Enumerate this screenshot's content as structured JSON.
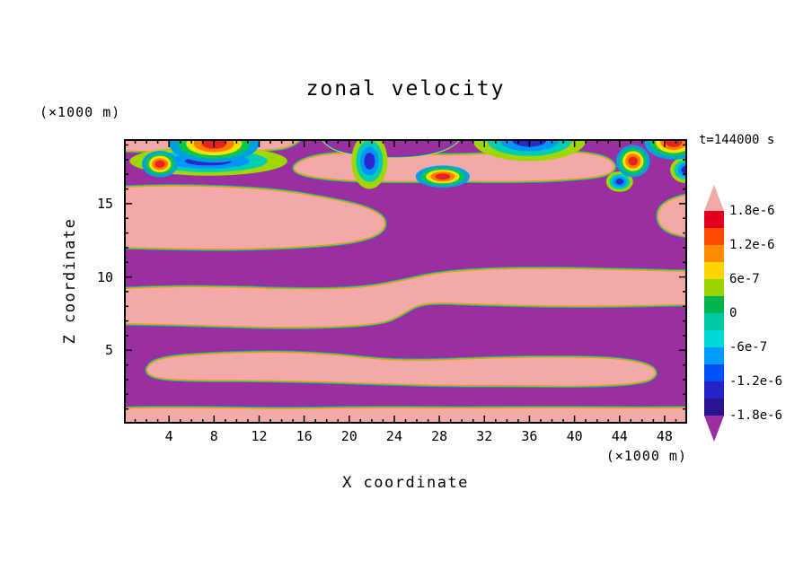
{
  "chart_data": {
    "type": "heatmap",
    "title": "zonal velocity",
    "annotation": "t=144000 s",
    "xlabel": "X coordinate",
    "ylabel": "Z coordinate",
    "x_unit": "(×1000 m)",
    "y_unit": "(×1000 m)",
    "xlim": [
      0,
      50
    ],
    "ylim": [
      0,
      19.4
    ],
    "x_ticks": [
      4,
      8,
      12,
      16,
      20,
      24,
      28,
      32,
      36,
      40,
      44,
      48
    ],
    "y_ticks": [
      5,
      10,
      15
    ],
    "colorbar": {
      "labels": [
        "1.8e-6",
        "1.2e-6",
        "6e-7",
        "0",
        "-6e-7",
        "-1.2e-6",
        "-1.8e-6"
      ],
      "level_values": [
        1.8e-06,
        1.2e-06,
        6e-07,
        0,
        -6e-07,
        -1.2e-06,
        -1.8e-06
      ],
      "segment_colors": [
        "#e3001e",
        "#ff4b00",
        "#ff8c00",
        "#ffd500",
        "#9bd500",
        "#00b450",
        "#00c8a5",
        "#00d7d7",
        "#009bff",
        "#0050f5",
        "#2323c8",
        "#28148f"
      ],
      "top_cap_color": "#f4a9a9",
      "bottom_cap_color": "#9a2f9f"
    },
    "colors": {
      "positive": "#f4a9a9",
      "negative": "#9a2f9f",
      "warm_rings": [
        "#00a0e1",
        "#00c850",
        "#ffe000",
        "#ff7d00",
        "#e8231e"
      ],
      "cool_rings": [
        "#a0d700",
        "#00cdb4",
        "#0096ff",
        "#2a28c8"
      ]
    },
    "field": {
      "description": "Filled contour field of zonal velocity at t=144000 s: broad horizontal pink layers (u >= 1.8e-6) alternate with purple layers (u <= -1.8e-6) through the interior; a strongly mixed multi-colored turbulent layer occupies the top of the domain (z ~ 16.5-19.4 x1000 m). Region outlines below are digitized in data coordinates (x, z in x1000 m).",
      "positive_regions": [
        {
          "name": "bottom-strip",
          "points": [
            [
              -3,
              1.05
            ],
            [
              6,
              1.1
            ],
            [
              14,
              1.0
            ],
            [
              22,
              1.1
            ],
            [
              30,
              1.05
            ],
            [
              38,
              1.1
            ],
            [
              46,
              1.05
            ],
            [
              53,
              1.1
            ],
            [
              53,
              -2
            ],
            [
              -3,
              -2
            ]
          ]
        },
        {
          "name": "lower-band",
          "points": [
            [
              1.8,
              3.7
            ],
            [
              3,
              4.5
            ],
            [
              8,
              4.8
            ],
            [
              14,
              4.9
            ],
            [
              19,
              4.7
            ],
            [
              23,
              4.35
            ],
            [
              27,
              4.3
            ],
            [
              33,
              4.5
            ],
            [
              39,
              4.55
            ],
            [
              44,
              4.45
            ],
            [
              46.8,
              4.0
            ],
            [
              47.4,
              3.3
            ],
            [
              46.0,
              2.75
            ],
            [
              41,
              2.55
            ],
            [
              35,
              2.6
            ],
            [
              29,
              2.6
            ],
            [
              24,
              2.7
            ],
            [
              18,
              2.85
            ],
            [
              12,
              2.95
            ],
            [
              6,
              2.95
            ],
            [
              2.6,
              3.1
            ]
          ]
        },
        {
          "name": "middle-step-band",
          "points": [
            [
              -3,
              9.1
            ],
            [
              4,
              9.35
            ],
            [
              10,
              9.3
            ],
            [
              16,
              9.15
            ],
            [
              21,
              9.25
            ],
            [
              24.5,
              9.7
            ],
            [
              27.5,
              10.25
            ],
            [
              32,
              10.55
            ],
            [
              38,
              10.6
            ],
            [
              44,
              10.5
            ],
            [
              49,
              10.4
            ],
            [
              53,
              10.35
            ],
            [
              53,
              8.15
            ],
            [
              48,
              8.1
            ],
            [
              42,
              8.0
            ],
            [
              36,
              8.05
            ],
            [
              31,
              8.15
            ],
            [
              28,
              8.25
            ],
            [
              26,
              8.1
            ],
            [
              24.6,
              7.4
            ],
            [
              23,
              6.85
            ],
            [
              19,
              6.6
            ],
            [
              13,
              6.55
            ],
            [
              7,
              6.7
            ],
            [
              2,
              6.8
            ],
            [
              -3,
              6.85
            ]
          ]
        },
        {
          "name": "upper-left-blob",
          "points": [
            [
              -3,
              16.0
            ],
            [
              3,
              16.25
            ],
            [
              9,
              16.15
            ],
            [
              14,
              15.9
            ],
            [
              18,
              15.4
            ],
            [
              21.5,
              14.8
            ],
            [
              23.3,
              14.0
            ],
            [
              23.0,
              13.0
            ],
            [
              20.5,
              12.35
            ],
            [
              16,
              12.05
            ],
            [
              11,
              11.9
            ],
            [
              6,
              11.9
            ],
            [
              1,
              12.0
            ],
            [
              -3,
              12.05
            ]
          ]
        },
        {
          "name": "upper-right-blob",
          "points": [
            [
              53,
              15.9
            ],
            [
              49.5,
              15.6
            ],
            [
              47.6,
              14.9
            ],
            [
              47.3,
              14.0
            ],
            [
              47.9,
              13.2
            ],
            [
              49.6,
              12.75
            ],
            [
              53,
              12.6
            ]
          ]
        },
        {
          "name": "top-center-pink",
          "points": [
            [
              14.8,
              17.4
            ],
            [
              16,
              18.1
            ],
            [
              19,
              18.5
            ],
            [
              24,
              18.4
            ],
            [
              29,
              18.3
            ],
            [
              34,
              18.45
            ],
            [
              39,
              18.6
            ],
            [
              42.5,
              18.3
            ],
            [
              43.8,
              17.6
            ],
            [
              43,
              16.9
            ],
            [
              39,
              16.6
            ],
            [
              34,
              16.5
            ],
            [
              29,
              16.55
            ],
            [
              24,
              16.5
            ],
            [
              19,
              16.6
            ],
            [
              16,
              16.9
            ]
          ]
        },
        {
          "name": "top-left-pink-strip",
          "points": [
            [
              -3,
              21
            ],
            [
              -3,
              18.7
            ],
            [
              2,
              18.55
            ],
            [
              7,
              18.5
            ],
            [
              12,
              18.6
            ],
            [
              15.5,
              18.9
            ],
            [
              16.8,
              21
            ]
          ]
        }
      ],
      "negative_overlays": [
        {
          "name": "top-center-purple",
          "points": [
            [
              16.5,
              21
            ],
            [
              17.8,
              19.0
            ],
            [
              20,
              18.4
            ],
            [
              24,
              18.15
            ],
            [
              27.5,
              18.4
            ],
            [
              29.8,
              19.2
            ],
            [
              30.8,
              21
            ]
          ]
        }
      ],
      "ring_features": [
        {
          "kind": "cool",
          "center": [
            7.5,
            17.9
          ],
          "rx": 7.0,
          "ry": 1.0
        },
        {
          "kind": "warm",
          "center": [
            3.2,
            17.7
          ],
          "rx": 1.6,
          "ry": 0.9
        },
        {
          "kind": "warm",
          "center": [
            8.0,
            19.1
          ],
          "rx": 4.0,
          "ry": 1.3
        },
        {
          "kind": "cool",
          "center": [
            21.8,
            17.9
          ],
          "rx": 1.6,
          "ry": 1.9
        },
        {
          "kind": "cool",
          "center": [
            36.0,
            19.3
          ],
          "rx": 5.0,
          "ry": 1.4
        },
        {
          "kind": "warm",
          "center": [
            28.3,
            16.85
          ],
          "rx": 2.4,
          "ry": 0.75
        },
        {
          "kind": "cool",
          "center": [
            44.0,
            16.5
          ],
          "rx": 1.2,
          "ry": 0.7
        },
        {
          "kind": "cool",
          "center": [
            49.9,
            17.3
          ],
          "rx": 1.4,
          "ry": 0.9
        },
        {
          "kind": "warm",
          "center": [
            45.2,
            17.9
          ],
          "rx": 1.5,
          "ry": 1.1
        },
        {
          "kind": "warm",
          "center": [
            48.8,
            19.2
          ],
          "rx": 2.6,
          "ry": 1.2
        }
      ]
    }
  }
}
